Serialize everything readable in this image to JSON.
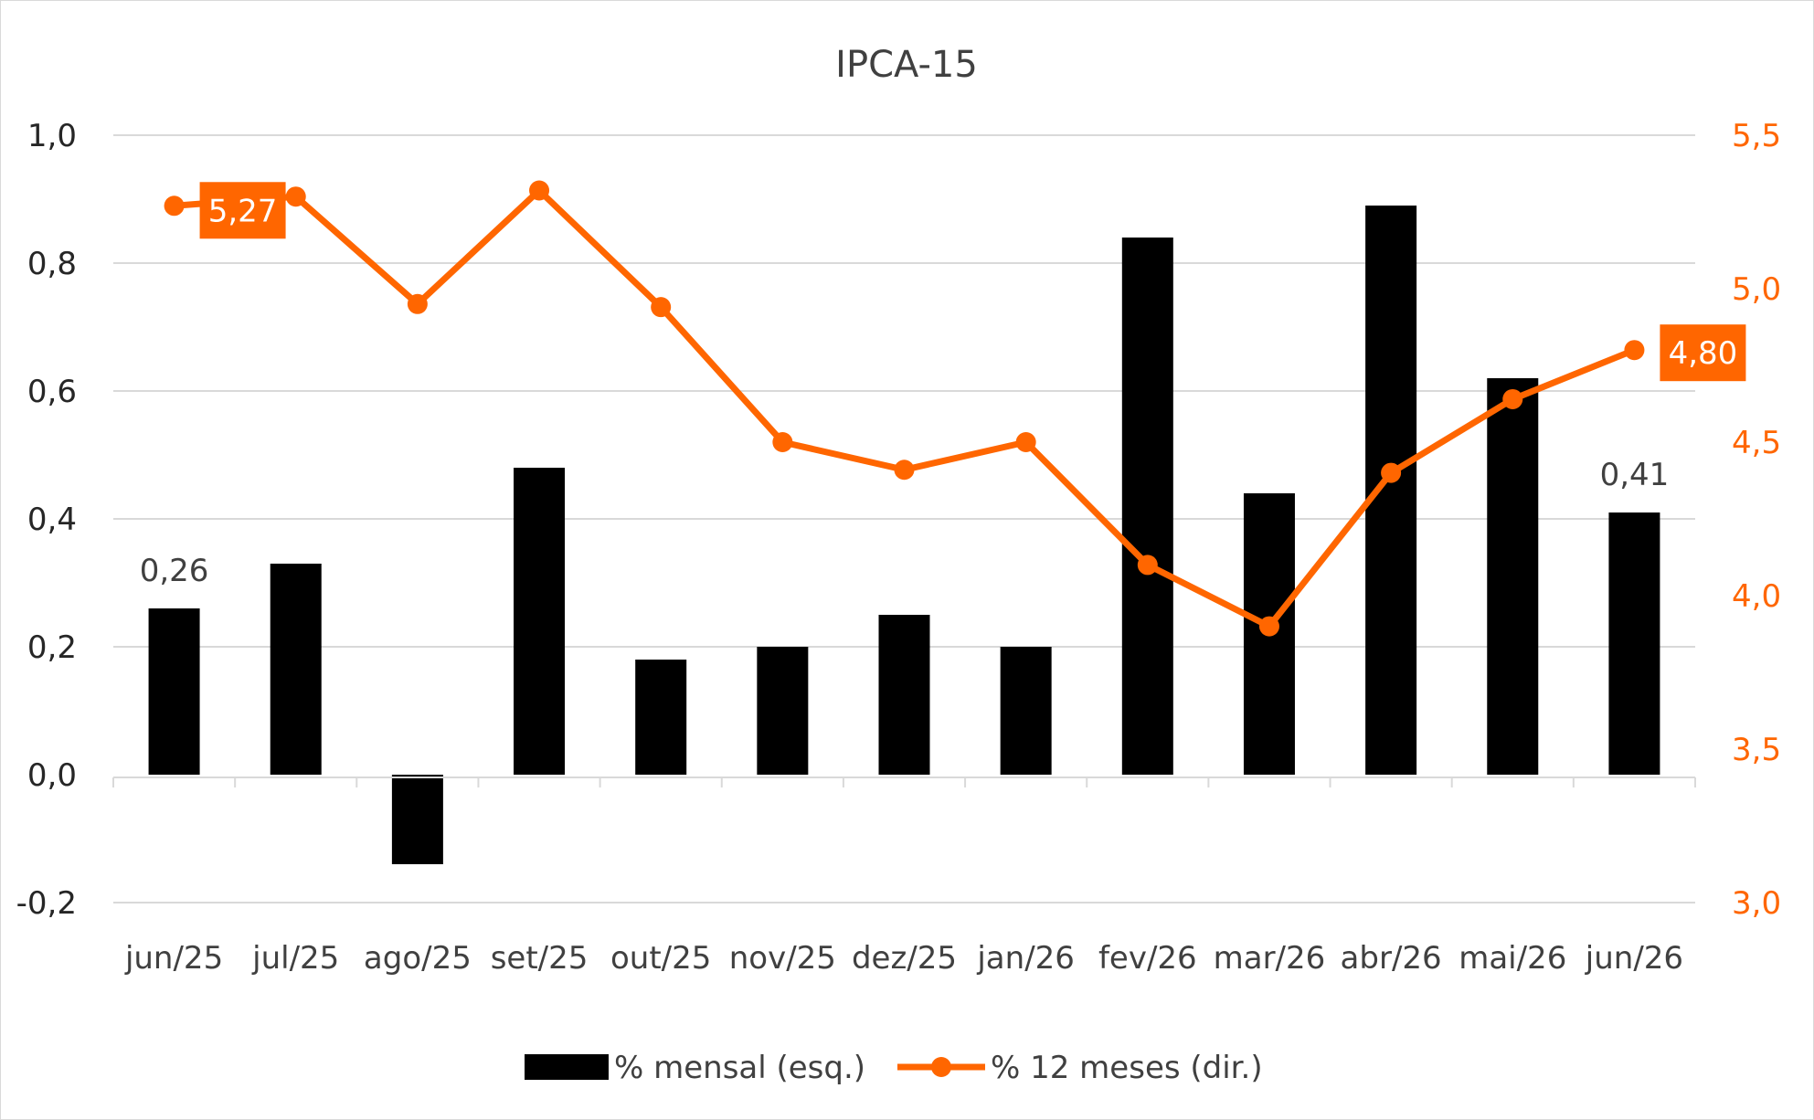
{
  "chart_data": {
    "type": "bar",
    "title": "IPCA-15",
    "categories": [
      "jun/25",
      "jul/25",
      "ago/25",
      "set/25",
      "out/25",
      "nov/25",
      "dez/25",
      "jan/26",
      "fev/26",
      "mar/26",
      "abr/26",
      "mai/26",
      "jun/26"
    ],
    "series": [
      {
        "name": "% mensal (esq.)",
        "type": "bar",
        "axis": "left",
        "color": "#000000",
        "values": [
          0.26,
          0.33,
          -0.14,
          0.48,
          0.18,
          0.2,
          0.25,
          0.2,
          0.84,
          0.44,
          0.89,
          0.62,
          0.41
        ]
      },
      {
        "name": "% 12 meses (dir.)",
        "type": "line",
        "axis": "right",
        "color": "#FF6600",
        "values": [
          5.27,
          5.3,
          4.95,
          5.32,
          4.94,
          4.5,
          4.41,
          4.5,
          4.1,
          3.9,
          4.4,
          4.64,
          4.8
        ]
      }
    ],
    "left_axis": {
      "ylim": [
        -0.2,
        1.0
      ],
      "ticks": [
        "1,0",
        "0,8",
        "0,6",
        "0,4",
        "0,2",
        "0,0",
        "-0,2"
      ]
    },
    "right_axis": {
      "ylim": [
        3.0,
        5.5
      ],
      "ticks": [
        "5,5",
        "5,0",
        "4,5",
        "4,0",
        "3,5",
        "3,0"
      ],
      "color": "#FF6600"
    },
    "bar_labels": [
      {
        "index": 0,
        "text": "0,26"
      },
      {
        "index": 12,
        "text": "0,41"
      }
    ],
    "line_callouts": [
      {
        "index": 0,
        "text": "5,27"
      },
      {
        "index": 12,
        "text": "4,80"
      }
    ],
    "grid": true,
    "legend_position": "bottom",
    "legend": [
      "% mensal (esq.)",
      "% 12 meses (dir.)"
    ]
  }
}
